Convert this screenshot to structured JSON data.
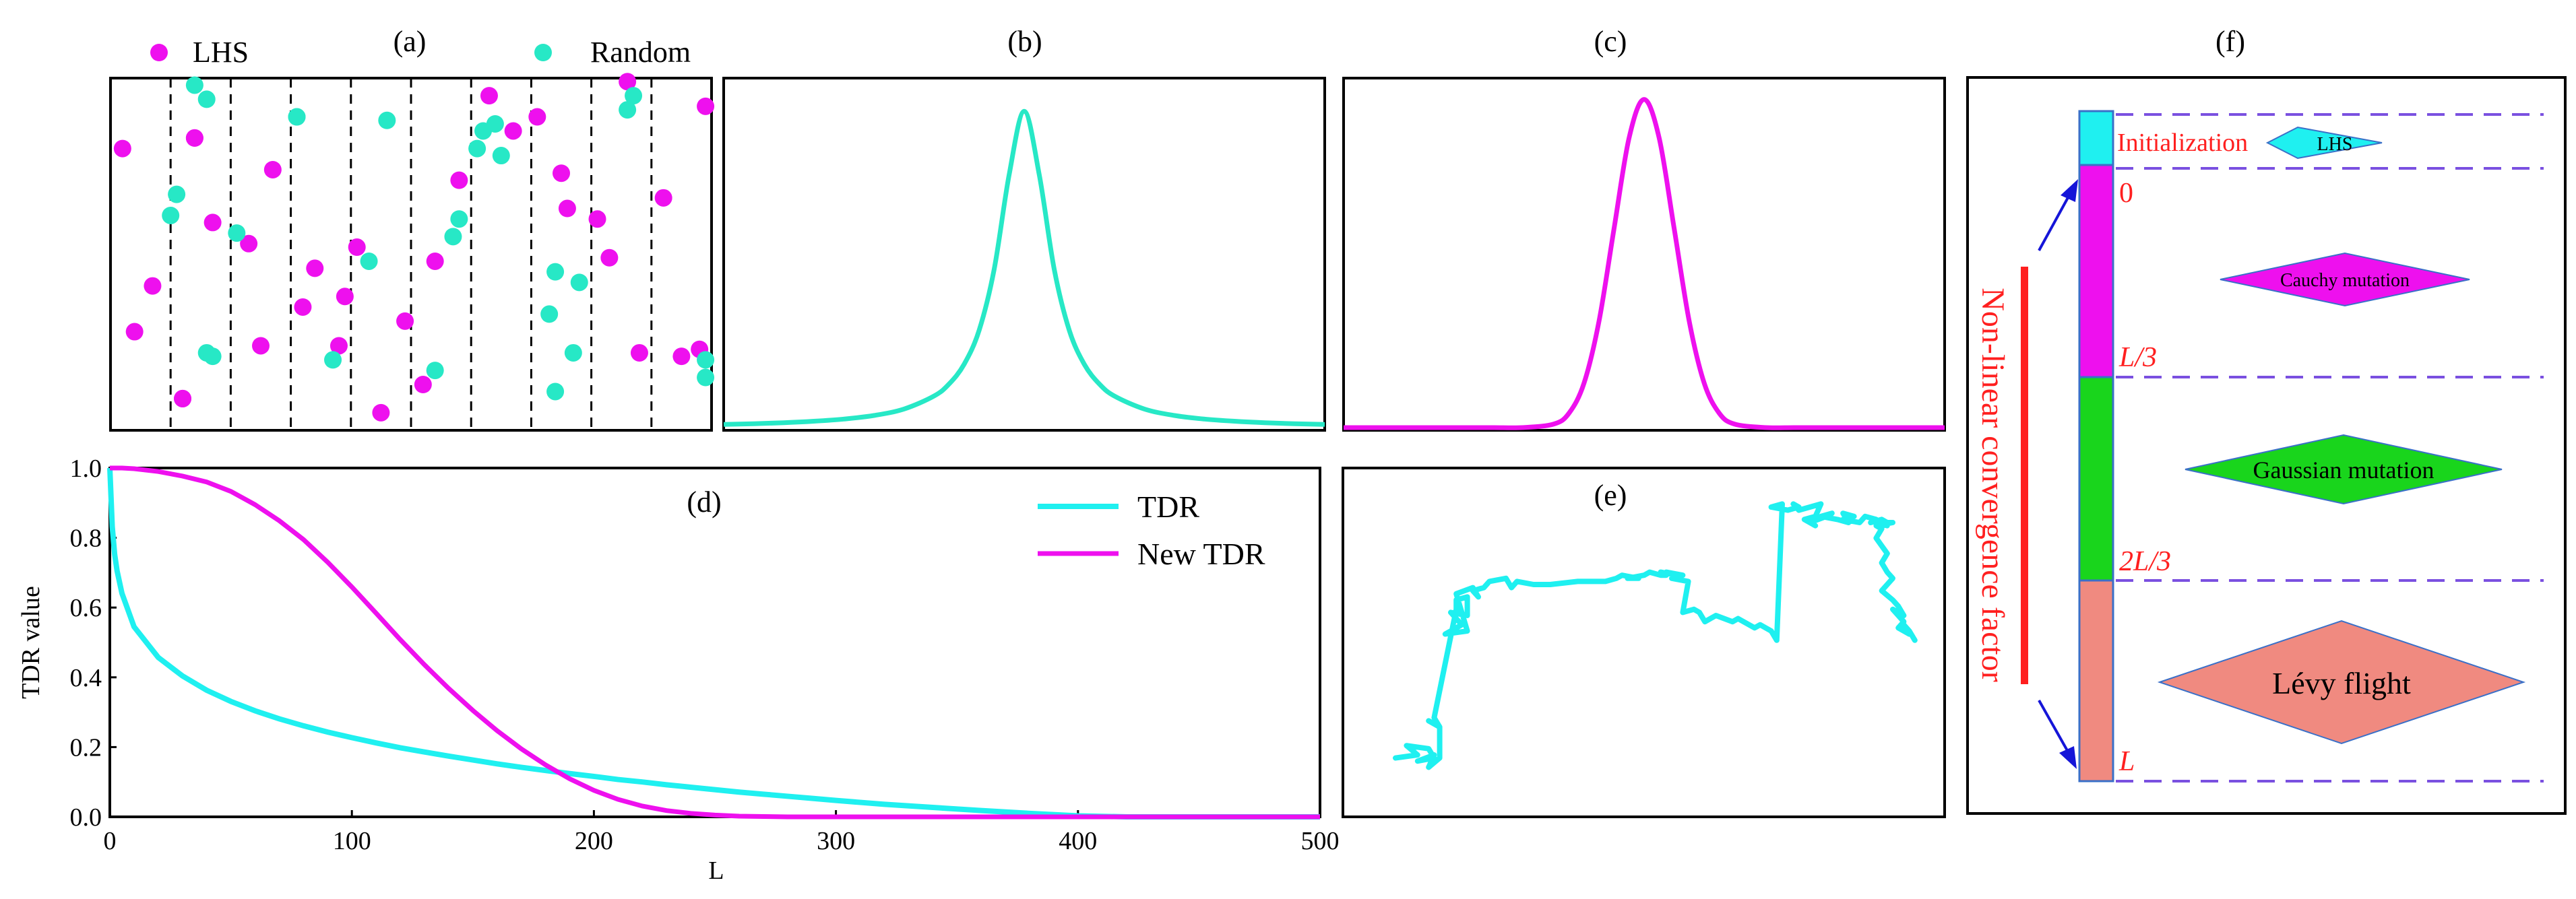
{
  "colors": {
    "magenta": "#ee10ee",
    "cyan": "#1ff0f0",
    "teal": "#27e8c6",
    "green": "#19d51c",
    "salmon": "#f08a80",
    "red": "#ff1f1f",
    "purple": "#7a50e0",
    "blue": "#1515d8"
  },
  "chart_data": [
    {
      "id": "a",
      "type": "scatter",
      "title": "(a)",
      "legend": [
        "LHS",
        "Random"
      ],
      "xlim": [
        0,
        1
      ],
      "ylim": [
        0,
        1
      ],
      "strata_boundaries": [
        0.1,
        0.2,
        0.3,
        0.4,
        0.5,
        0.6,
        0.7,
        0.8,
        0.9
      ],
      "series": [
        {
          "name": "LHS",
          "points": [
            [
              0.02,
              0.8
            ],
            [
              0.04,
              0.28
            ],
            [
              0.07,
              0.41
            ],
            [
              0.12,
              0.09
            ],
            [
              0.14,
              0.83
            ],
            [
              0.17,
              0.59
            ],
            [
              0.23,
              0.53
            ],
            [
              0.25,
              0.24
            ],
            [
              0.27,
              0.74
            ],
            [
              0.32,
              0.35
            ],
            [
              0.34,
              0.46
            ],
            [
              0.38,
              0.24
            ],
            [
              0.39,
              0.38
            ],
            [
              0.41,
              0.52
            ],
            [
              0.45,
              0.05
            ],
            [
              0.49,
              0.31
            ],
            [
              0.52,
              0.13
            ],
            [
              0.54,
              0.48
            ],
            [
              0.58,
              0.71
            ],
            [
              0.63,
              0.95
            ],
            [
              0.67,
              0.85
            ],
            [
              0.71,
              0.89
            ],
            [
              0.75,
              0.73
            ],
            [
              0.76,
              0.63
            ],
            [
              0.81,
              0.6
            ],
            [
              0.83,
              0.49
            ],
            [
              0.86,
              0.99
            ],
            [
              0.88,
              0.22
            ],
            [
              0.92,
              0.66
            ],
            [
              0.95,
              0.21
            ],
            [
              0.98,
              0.23
            ],
            [
              0.99,
              0.92
            ],
            [
              0.12,
              0.09
            ],
            [
              0.14,
              0.83
            ]
          ]
        },
        {
          "name": "Random",
          "points": [
            [
              0.1,
              0.61
            ],
            [
              0.11,
              0.67
            ],
            [
              0.14,
              0.98
            ],
            [
              0.16,
              0.94
            ],
            [
              0.16,
              0.22
            ],
            [
              0.17,
              0.21
            ],
            [
              0.21,
              0.56
            ],
            [
              0.31,
              0.89
            ],
            [
              0.37,
              0.2
            ],
            [
              0.43,
              0.48
            ],
            [
              0.46,
              0.88
            ],
            [
              0.54,
              0.17
            ],
            [
              0.57,
              0.55
            ],
            [
              0.58,
              0.6
            ],
            [
              0.61,
              0.8
            ],
            [
              0.62,
              0.85
            ],
            [
              0.64,
              0.87
            ],
            [
              0.65,
              0.78
            ],
            [
              0.73,
              0.33
            ],
            [
              0.74,
              0.11
            ],
            [
              0.74,
              0.45
            ],
            [
              0.77,
              0.22
            ],
            [
              0.78,
              0.42
            ],
            [
              0.86,
              0.91
            ],
            [
              0.87,
              0.95
            ],
            [
              0.99,
              0.2
            ],
            [
              0.99,
              0.15
            ],
            [
              0.31,
              0.89
            ]
          ]
        }
      ]
    },
    {
      "id": "b",
      "type": "line",
      "title": "(b)",
      "name": "Cauchy distribution",
      "x": [
        -10,
        -9,
        -8,
        -7,
        -6,
        -5,
        -4,
        -3,
        -2.5,
        -2,
        -1.5,
        -1,
        -0.5,
        0,
        0.5,
        1,
        1.5,
        2,
        2.5,
        3,
        4,
        5,
        6,
        7,
        8,
        9,
        10
      ],
      "y": [
        0.0032,
        0.0039,
        0.0049,
        0.0064,
        0.0086,
        0.0122,
        0.0187,
        0.0318,
        0.0439,
        0.0637,
        0.0979,
        0.1592,
        0.2546,
        0.3183,
        0.2546,
        0.1592,
        0.0979,
        0.0637,
        0.0439,
        0.0318,
        0.0187,
        0.0122,
        0.0086,
        0.0064,
        0.0049,
        0.0039,
        0.0032
      ],
      "xlim": [
        -10,
        10
      ],
      "ylim": [
        0,
        0.33
      ]
    },
    {
      "id": "c",
      "type": "line",
      "title": "(c)",
      "name": "Gaussian distribution",
      "x": [
        -10,
        -8,
        -6,
        -5,
        -4,
        -3,
        -2.5,
        -2,
        -1.5,
        -1,
        -0.5,
        0,
        0.5,
        1,
        1.5,
        2,
        2.5,
        3,
        4,
        5,
        6,
        8,
        10
      ],
      "y": [
        0,
        0,
        0,
        0,
        0.0001,
        0.0044,
        0.0175,
        0.054,
        0.1295,
        0.242,
        0.3521,
        0.3989,
        0.3521,
        0.242,
        0.1295,
        0.054,
        0.0175,
        0.0044,
        0.0001,
        0,
        0,
        0,
        0
      ],
      "xlim": [
        -10,
        10
      ],
      "ylim": [
        0,
        0.41
      ]
    },
    {
      "id": "d",
      "type": "line",
      "title": "(d)",
      "xlabel": "L",
      "ylabel": "TDR value",
      "xlim": [
        0,
        500
      ],
      "ylim": [
        0,
        1
      ],
      "xticks": [
        0,
        100,
        200,
        300,
        400,
        500
      ],
      "yticks": [
        0.0,
        0.2,
        0.4,
        0.6,
        0.8,
        1.0
      ],
      "xtick_labels": [
        "0",
        "100",
        "200",
        "300",
        "400",
        "500"
      ],
      "ytick_labels": [
        "0.0",
        "0.2",
        "0.4",
        "0.6",
        "0.8",
        "1.0"
      ],
      "legend_position": "top-right",
      "x": [
        0,
        1,
        2,
        3,
        5,
        10,
        20,
        30,
        40,
        50,
        60,
        70,
        80,
        90,
        100,
        110,
        120,
        130,
        140,
        150,
        160,
        170,
        180,
        190,
        200,
        210,
        220,
        230,
        240,
        250,
        260,
        270,
        280,
        290,
        300,
        320,
        340,
        360,
        380,
        400,
        420,
        440,
        460,
        480,
        500
      ],
      "series": [
        {
          "name": "TDR",
          "values": [
            1.0,
            0.832,
            0.752,
            0.705,
            0.641,
            0.545,
            0.457,
            0.404,
            0.363,
            0.331,
            0.304,
            0.281,
            0.261,
            0.243,
            0.227,
            0.212,
            0.198,
            0.186,
            0.174,
            0.163,
            0.152,
            0.142,
            0.133,
            0.124,
            0.116,
            0.107,
            0.1,
            0.092,
            0.085,
            0.078,
            0.071,
            0.065,
            0.059,
            0.053,
            0.047,
            0.036,
            0.027,
            0.018,
            0.01,
            0.003,
            0,
            0,
            0,
            0,
            0
          ]
        },
        {
          "name": "New TDR",
          "values": [
            1.0,
            1.0,
            1.0,
            1.0,
            1.0,
            0.998,
            0.99,
            0.977,
            0.96,
            0.933,
            0.895,
            0.849,
            0.795,
            0.73,
            0.659,
            0.584,
            0.508,
            0.436,
            0.368,
            0.305,
            0.247,
            0.195,
            0.149,
            0.109,
            0.076,
            0.05,
            0.031,
            0.018,
            0.01,
            0.005,
            0.002,
            0.001,
            0,
            0,
            0,
            0,
            0,
            0,
            0,
            0,
            0,
            0,
            0,
            0,
            0
          ]
        }
      ]
    },
    {
      "id": "e",
      "type": "line",
      "title": "(e)",
      "name": "Lévy flight random walk",
      "xlim": [
        0,
        1
      ],
      "ylim": [
        0,
        1
      ],
      "x": [
        0.05,
        0.09,
        0.07,
        0.11,
        0.12,
        0.09,
        0.12,
        0.11,
        0.13,
        0.13,
        0.11,
        0.13,
        0.12,
        0.16,
        0.16,
        0.18,
        0.18,
        0.15,
        0.17,
        0.14,
        0.18,
        0.17,
        0.16,
        0.19,
        0.2,
        0.19,
        0.21,
        0.22,
        0.25,
        0.26,
        0.27,
        0.3,
        0.33,
        0.38,
        0.41,
        0.43,
        0.45,
        0.46,
        0.49,
        0.47,
        0.5,
        0.51,
        0.53,
        0.54,
        0.53,
        0.56,
        0.54,
        0.57,
        0.55,
        0.58,
        0.57,
        0.59,
        0.6,
        0.61,
        0.63,
        0.66,
        0.67,
        0.7,
        0.71,
        0.73,
        0.74,
        0.75,
        0.73,
        0.76,
        0.78,
        0.77,
        0.78,
        0.8,
        0.82,
        0.81,
        0.79,
        0.81,
        0.8,
        0.83,
        0.84,
        0.82,
        0.85,
        0.87,
        0.86,
        0.88,
        0.86,
        0.89,
        0.9,
        0.92,
        0.91,
        0.93,
        0.92,
        0.94,
        0.93,
        0.94,
        0.95,
        0.92,
        0.93,
        0.92,
        0.94,
        0.93,
        0.94,
        0.95,
        0.94,
        0.93,
        0.95,
        0.96,
        0.97,
        0.95,
        0.97,
        0.96,
        0.98,
        0.97,
        0.98,
        0.99
      ],
      "y": [
        0.14,
        0.15,
        0.18,
        0.17,
        0.14,
        0.13,
        0.15,
        0.11,
        0.14,
        0.24,
        0.26,
        0.24,
        0.27,
        0.62,
        0.65,
        0.66,
        0.6,
        0.61,
        0.57,
        0.54,
        0.55,
        0.61,
        0.67,
        0.69,
        0.66,
        0.68,
        0.69,
        0.71,
        0.72,
        0.69,
        0.71,
        0.7,
        0.7,
        0.71,
        0.71,
        0.71,
        0.72,
        0.73,
        0.72,
        0.72,
        0.73,
        0.74,
        0.73,
        0.73,
        0.74,
        0.73,
        0.74,
        0.73,
        0.72,
        0.71,
        0.61,
        0.62,
        0.61,
        0.58,
        0.6,
        0.58,
        0.59,
        0.56,
        0.57,
        0.55,
        0.52,
        0.96,
        0.95,
        0.94,
        0.95,
        0.96,
        0.94,
        0.95,
        0.96,
        0.92,
        0.91,
        0.89,
        0.9,
        0.92,
        0.93,
        0.92,
        0.91,
        0.9,
        0.93,
        0.92,
        0.91,
        0.9,
        0.92,
        0.91,
        0.9,
        0.91,
        0.9,
        0.89,
        0.91,
        0.9,
        0.9,
        0.89,
        0.88,
        0.85,
        0.8,
        0.77,
        0.74,
        0.72,
        0.7,
        0.68,
        0.65,
        0.63,
        0.6,
        0.62,
        0.58,
        0.56,
        0.54,
        0.57,
        0.55,
        0.52
      ]
    }
  ],
  "panel_a": {
    "title": "(a)",
    "legend": [
      {
        "label": "LHS",
        "color": "#ee10ee"
      },
      {
        "label": "Random",
        "color": "#27e8c6"
      }
    ]
  },
  "panel_b": {
    "title": "(b)"
  },
  "panel_c": {
    "title": "(c)"
  },
  "panel_d": {
    "title": "(d)",
    "xlabel": "L",
    "ylabel": "TDR value",
    "legend": [
      {
        "label": "TDR",
        "color": "#1ff0f0"
      },
      {
        "label": "New TDR",
        "color": "#ee10ee"
      }
    ]
  },
  "panel_e": {
    "title": "(e)"
  },
  "panel_f": {
    "title": "(f)",
    "axis_label": "Non-linear convergence factor",
    "stages": [
      {
        "boundary_label": "",
        "stage_label": "Initialization",
        "shape_label": "LHS",
        "color": "#1ff0f0"
      },
      {
        "boundary_label": "0",
        "stage_label": "",
        "shape_label": "Cauchy mutation",
        "color": "#ee10ee"
      },
      {
        "boundary_label": "L/3",
        "stage_label": "",
        "shape_label": "Gaussian mutation",
        "color": "#19d51c"
      },
      {
        "boundary_label": "2L/3",
        "stage_label": "",
        "shape_label": "Lévy flight",
        "color": "#f08a80"
      },
      {
        "boundary_label": "L",
        "stage_label": "",
        "shape_label": "",
        "color": ""
      }
    ]
  }
}
